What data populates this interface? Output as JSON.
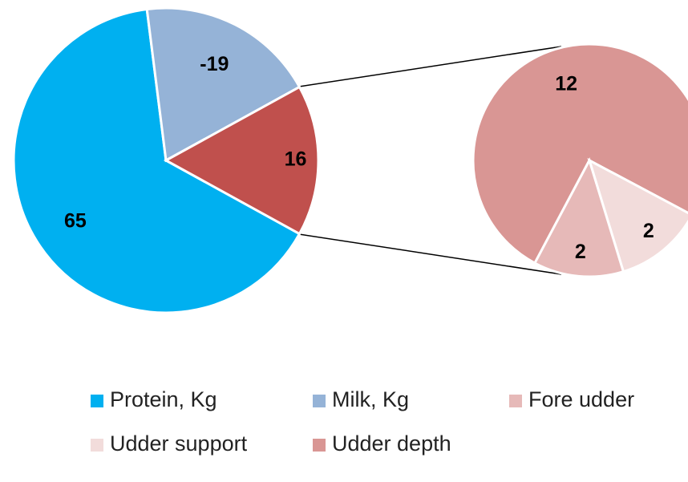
{
  "chart_data": [
    {
      "type": "pie",
      "categories": [
        "Protein, Kg",
        "Milk, Kg",
        null
      ],
      "values": [
        65,
        -19,
        16
      ],
      "colors": [
        "#00b0f0",
        "#95b3d7",
        "#c0504d"
      ]
    },
    {
      "type": "pie",
      "categories": [
        "Udder depth",
        "Udder support",
        "Fore udder"
      ],
      "values": [
        12,
        2,
        2
      ],
      "colors": [
        "#d99694",
        "#f2dcdb",
        "#e6b9b8"
      ]
    }
  ]
}
